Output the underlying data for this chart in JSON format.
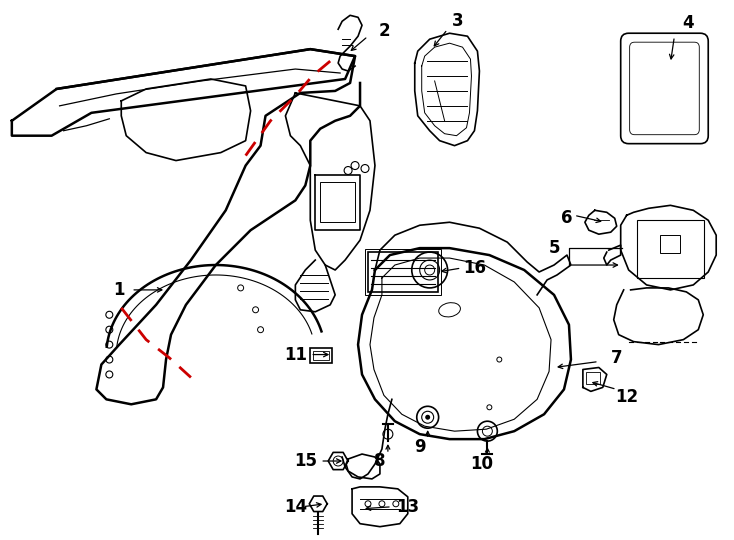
{
  "bg_color": "#ffffff",
  "line_color": "#000000",
  "red_color": "#cc0000",
  "fig_width": 7.34,
  "fig_height": 5.4,
  "dpi": 100
}
